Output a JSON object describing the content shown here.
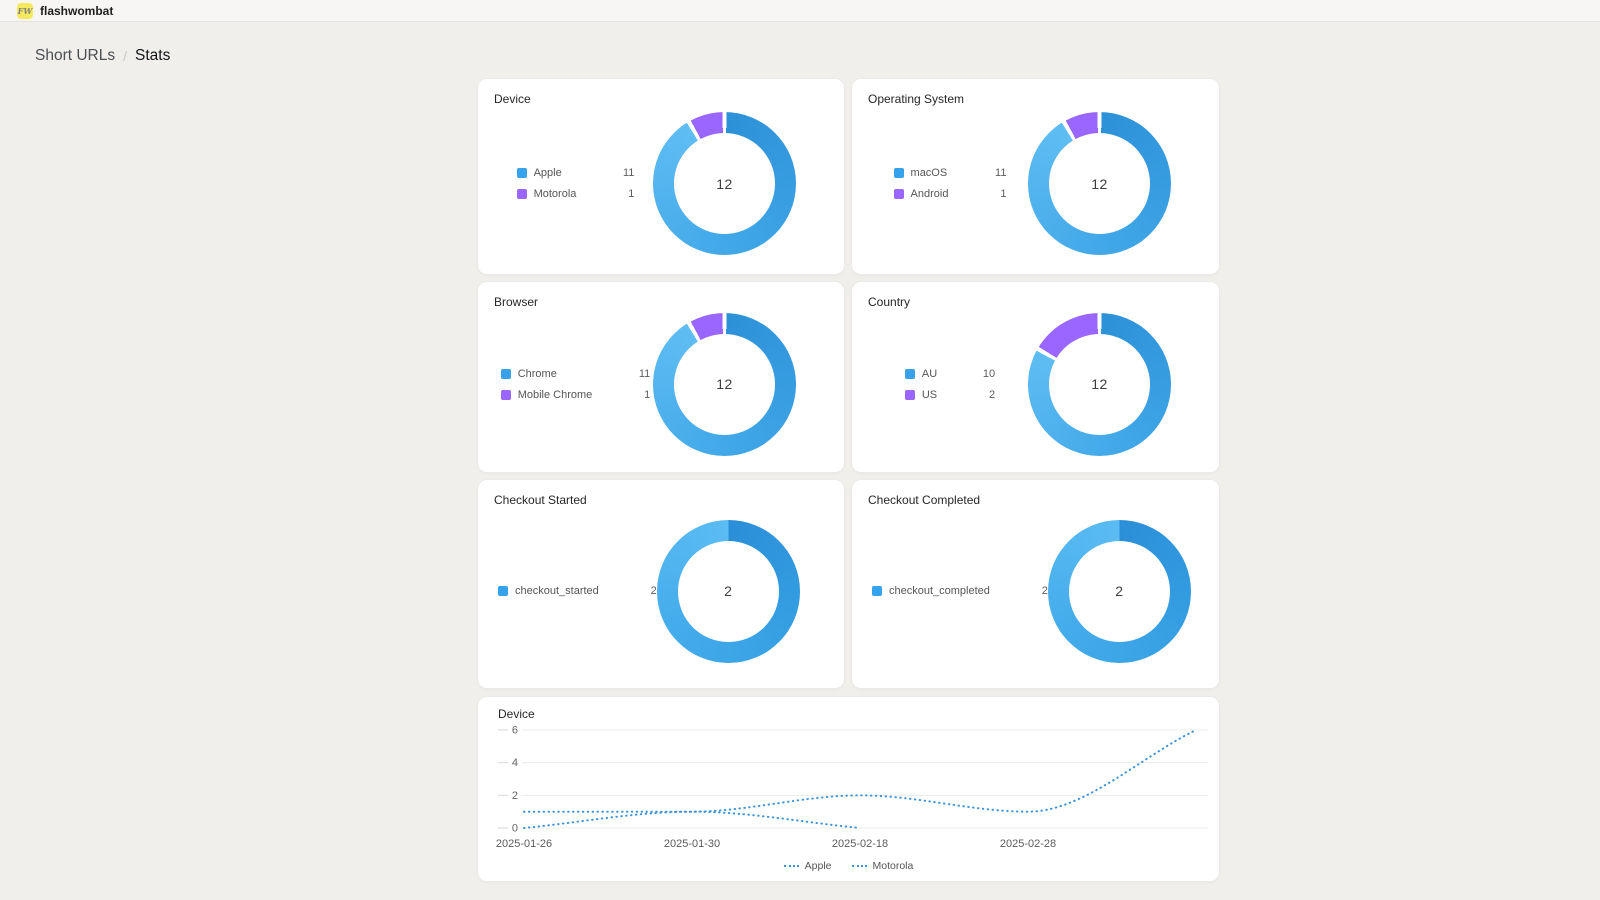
{
  "header": {
    "app_name": "flashwombat",
    "logo_text": "FW",
    "logo_color": "#F5E960"
  },
  "breadcrumb": {
    "items": [
      "Short URLs",
      "Stats"
    ],
    "separator": "/",
    "active": "Stats"
  },
  "colors": {
    "blue": "#36A2EB",
    "purple": "#9966FF",
    "line_blue": "#3B93D8",
    "page_bg": "#F0EFEC",
    "card_bg": "#FFFFFF"
  },
  "chart_data": [
    {
      "type": "doughnut",
      "title": "Device",
      "categories": [
        "Apple",
        "Motorola"
      ],
      "values": [
        11,
        1
      ],
      "total": 12,
      "colors": [
        "#36A2EB",
        "#9966FF"
      ],
      "legend_position": "left"
    },
    {
      "type": "doughnut",
      "title": "Operating System",
      "categories": [
        "macOS",
        "Android"
      ],
      "values": [
        11,
        1
      ],
      "total": 12,
      "colors": [
        "#36A2EB",
        "#9966FF"
      ],
      "legend_position": "left"
    },
    {
      "type": "doughnut",
      "title": "Browser",
      "categories": [
        "Chrome",
        "Mobile Chrome"
      ],
      "values": [
        11,
        1
      ],
      "total": 12,
      "colors": [
        "#36A2EB",
        "#9966FF"
      ],
      "legend_position": "left"
    },
    {
      "type": "doughnut",
      "title": "Country",
      "categories": [
        "AU",
        "US"
      ],
      "values": [
        10,
        2
      ],
      "total": 12,
      "colors": [
        "#36A2EB",
        "#9966FF"
      ],
      "legend_position": "left"
    },
    {
      "type": "doughnut",
      "title": "Checkout Started",
      "categories": [
        "checkout_started"
      ],
      "values": [
        2
      ],
      "total": 2,
      "colors": [
        "#36A2EB"
      ],
      "legend_position": "left"
    },
    {
      "type": "doughnut",
      "title": "Checkout Completed",
      "categories": [
        "checkout_completed"
      ],
      "values": [
        2
      ],
      "total": 2,
      "colors": [
        "#36A2EB"
      ],
      "legend_position": "left"
    },
    {
      "type": "line",
      "title": "Device",
      "x": [
        "2025-01-26",
        "2025-01-30",
        "2025-02-18",
        "2025-02-28",
        ""
      ],
      "series": [
        {
          "name": "Apple",
          "values": [
            1,
            1,
            2,
            1,
            6
          ],
          "color": "#3B93D8"
        },
        {
          "name": "Motorola",
          "values": [
            0,
            1,
            0,
            null,
            null
          ],
          "color": "#3B93D8"
        }
      ],
      "yticks": [
        0,
        2,
        4,
        6
      ],
      "ylim": [
        0,
        6
      ],
      "grid": true,
      "line_style": "dotted",
      "legend_position": "bottom"
    }
  ]
}
